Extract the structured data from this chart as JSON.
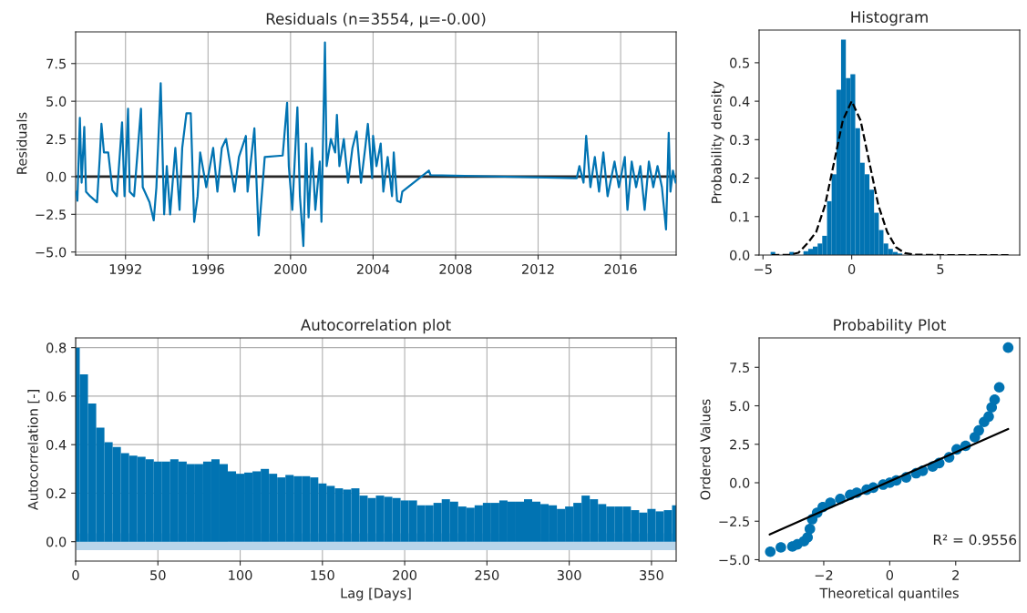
{
  "chart_data": [
    {
      "type": "line",
      "title": "Residuals (n=3554, μ=-0.00)",
      "ylabel": "Residuals",
      "grid": true,
      "x": [
        "1989-08-15",
        "1989-09-01",
        "1989-10-15",
        "1989-11-15",
        "1990-01-01",
        "1990-02-01",
        "1990-04-15",
        "1990-08-15",
        "1990-10-01",
        "1990-11-01",
        "1990-12-15",
        "1991-03-01",
        "1991-05-15",
        "1991-08-01",
        "1991-11-01",
        "1991-12-15",
        "1992-02-15",
        "1992-03-15",
        "1992-06-01",
        "1992-10-01",
        "1992-11-01",
        "1993-03-01",
        "1993-05-15",
        "1993-07-01",
        "1993-09-15",
        "1993-11-15",
        "1994-01-01",
        "1994-03-01",
        "1994-06-01",
        "1994-08-15",
        "1994-10-01",
        "1994-12-15",
        "1995-03-01",
        "1995-05-01",
        "1995-07-01",
        "1995-08-15",
        "1995-12-01",
        "1996-04-01",
        "1996-06-15",
        "1996-09-01",
        "1996-11-15",
        "1997-02-01",
        "1997-04-15",
        "1997-07-01",
        "1997-11-01",
        "1997-12-01",
        "1998-04-01",
        "1998-06-15",
        "1998-10-01",
        "1999-08-15",
        "1999-11-01",
        "1999-12-01",
        "2000-02-01",
        "2000-05-01",
        "2000-06-15",
        "2000-08-15",
        "2000-10-01",
        "2000-11-15",
        "2001-01-15",
        "2001-03-15",
        "2001-06-01",
        "2001-07-01",
        "2001-09-01",
        "2001-10-01",
        "2001-12-15",
        "2002-03-01",
        "2002-04-01",
        "2002-05-15",
        "2002-08-01",
        "2002-10-15",
        "2003-01-01",
        "2003-03-15",
        "2003-06-01",
        "2003-08-15",
        "2003-10-01",
        "2003-12-15",
        "2004-01-01",
        "2004-03-01",
        "2004-05-15",
        "2004-07-01",
        "2004-09-15",
        "2004-12-01",
        "2005-01-01",
        "2005-03-01",
        "2005-05-01",
        "2005-06-01",
        "2006-09-15",
        "2006-10-15",
        "2013-11-15",
        "2014-01-01",
        "2014-03-15",
        "2014-05-01",
        "2014-07-15",
        "2014-10-01",
        "2014-12-15",
        "2015-03-01",
        "2015-05-15",
        "2015-09-15",
        "2015-12-01",
        "2016-03-15",
        "2016-05-01",
        "2016-07-15",
        "2016-10-01",
        "2016-12-15",
        "2017-03-01",
        "2017-05-15",
        "2017-08-01",
        "2017-10-15",
        "2018-01-01",
        "2018-03-15",
        "2018-05-01",
        "2018-06-01",
        "2018-07-15",
        "2018-09-01"
      ],
      "series": [
        {
          "color": "#0173b2",
          "values": [
            -1.0,
            -1.6,
            3.9,
            -0.4,
            3.3,
            -1.0,
            -1.3,
            -1.7,
            1.2,
            3.5,
            1.6,
            1.6,
            -0.9,
            -1.3,
            3.6,
            -1.3,
            4.5,
            -1.0,
            -1.3,
            4.5,
            -0.7,
            -1.7,
            -2.9,
            -0.7,
            6.2,
            -2.5,
            0.7,
            -2.5,
            1.9,
            -2.2,
            1.9,
            4.2,
            4.2,
            -3.0,
            -1.3,
            1.6,
            -0.7,
            1.9,
            -1.0,
            1.9,
            2.5,
            0.7,
            -1.0,
            1.3,
            2.7,
            -1.0,
            3.2,
            -3.9,
            1.3,
            1.4,
            4.9,
            0.7,
            -2.2,
            4.6,
            -1.3,
            -4.6,
            2.2,
            -2.7,
            1.9,
            -2.2,
            1.0,
            -3.0,
            8.9,
            0.7,
            2.5,
            1.6,
            4.1,
            0.7,
            2.5,
            -0.4,
            1.9,
            3.0,
            -0.4,
            1.9,
            3.5,
            -0.1,
            2.7,
            0.7,
            2.2,
            -1.0,
            1.3,
            -1.3,
            1.6,
            -1.6,
            -1.7,
            -1.0,
            0.4,
            0.1,
            -0.1,
            0.7,
            -0.4,
            2.7,
            -0.7,
            1.3,
            -1.0,
            1.6,
            -1.3,
            1.0,
            -0.7,
            1.3,
            -2.2,
            1.0,
            -0.7,
            0.7,
            -2.2,
            1.0,
            -0.7,
            0.7,
            -0.7,
            -3.5,
            2.9,
            -1.0,
            0.4,
            -0.4
          ]
        }
      ],
      "ref_lines": [
        {
          "axis": "y",
          "value": 0,
          "color": "#262626"
        }
      ],
      "xlim": [
        "1989-08-01",
        "2018-09-10"
      ],
      "ylim": [
        -5.2,
        9.6
      ],
      "xticks": [
        "1992",
        "1996",
        "2000",
        "2004",
        "2008",
        "2012",
        "2016"
      ],
      "yticks": [
        {
          "value": -5,
          "label": "−5.0"
        },
        {
          "value": -2.5,
          "label": "−2.5"
        },
        {
          "value": 0,
          "label": "0.0"
        },
        2.5,
        {
          "value": 5,
          "label": "5.0"
        },
        7.5
      ]
    },
    {
      "type": "histogram",
      "title": "Histogram",
      "ylabel": "Probability density",
      "bins": [
        -4.57,
        -4.31,
        -4.04,
        -3.78,
        -3.51,
        -3.25,
        -2.98,
        -2.72,
        -2.45,
        -2.19,
        -1.92,
        -1.66,
        -1.39,
        -1.13,
        -0.86,
        -0.6,
        -0.33,
        -0.07,
        0.2,
        0.47,
        0.73,
        1.0,
        1.26,
        1.53,
        1.79,
        2.06,
        2.32,
        2.59,
        2.85,
        3.12,
        3.38
      ],
      "series": [
        {
          "color": "#0173b2",
          "values": [
            0.008,
            0,
            0,
            0,
            0.008,
            0,
            0,
            0.01,
            0.016,
            0.022,
            0.03,
            0.05,
            0.14,
            0.21,
            0.43,
            0.56,
            0.46,
            0.47,
            0.33,
            0.24,
            0.21,
            0.17,
            0.11,
            0.065,
            0.03,
            0.016,
            0.008,
            0.004,
            0,
            0
          ]
        },
        {
          "type": "line",
          "color": "#000000",
          "line_style": "dashed",
          "x": [
            -4.5,
            -3.5,
            -3.0,
            -2.5,
            -2.0,
            -1.5,
            -1.0,
            -0.5,
            0.0,
            0.5,
            1.0,
            1.5,
            2.0,
            2.5,
            3.0,
            3.5,
            5.0,
            8.9
          ],
          "values": [
            0,
            0.001,
            0.006,
            0.03,
            0.06,
            0.13,
            0.24,
            0.35,
            0.4,
            0.35,
            0.24,
            0.13,
            0.06,
            0.02,
            0.005,
            0.001,
            0,
            0
          ]
        }
      ],
      "xlim": [
        -5.22,
        9.47
      ],
      "ylim": [
        0,
        0.585
      ],
      "xticks": [
        {
          "value": -5,
          "label": "−5"
        },
        0,
        5
      ],
      "yticks": [
        {
          "value": 0,
          "label": "0.0"
        },
        0.1,
        0.2,
        0.3,
        0.4,
        0.5
      ]
    },
    {
      "type": "bar",
      "title": "Autocorrelation plot",
      "xlabel": "Lag [Days]",
      "ylabel": "Autocorrelation [-]",
      "grid": true,
      "x": [
        0,
        5,
        10,
        15,
        20,
        25,
        30,
        35,
        40,
        45,
        50,
        55,
        60,
        65,
        70,
        75,
        80,
        85,
        90,
        95,
        100,
        105,
        110,
        115,
        120,
        125,
        130,
        135,
        140,
        145,
        150,
        155,
        160,
        165,
        170,
        175,
        180,
        185,
        190,
        195,
        200,
        205,
        210,
        215,
        220,
        225,
        230,
        235,
        240,
        245,
        250,
        255,
        260,
        265,
        270,
        275,
        280,
        285,
        290,
        295,
        300,
        305,
        310,
        315,
        320,
        325,
        330,
        335,
        340,
        345,
        350,
        355,
        360,
        365
      ],
      "series": [
        {
          "color": "#0173b2",
          "values": [
            0.8,
            0.69,
            0.57,
            0.47,
            0.41,
            0.39,
            0.365,
            0.355,
            0.35,
            0.34,
            0.33,
            0.33,
            0.34,
            0.33,
            0.32,
            0.32,
            0.33,
            0.34,
            0.32,
            0.29,
            0.28,
            0.285,
            0.29,
            0.3,
            0.28,
            0.265,
            0.275,
            0.27,
            0.27,
            0.265,
            0.24,
            0.23,
            0.22,
            0.215,
            0.22,
            0.19,
            0.18,
            0.19,
            0.185,
            0.18,
            0.17,
            0.17,
            0.15,
            0.15,
            0.16,
            0.175,
            0.165,
            0.145,
            0.14,
            0.15,
            0.16,
            0.16,
            0.17,
            0.165,
            0.165,
            0.175,
            0.165,
            0.155,
            0.15,
            0.135,
            0.145,
            0.16,
            0.19,
            0.175,
            0.155,
            0.145,
            0.145,
            0.145,
            0.13,
            0.12,
            0.135,
            0.125,
            0.13,
            0.15
          ]
        }
      ],
      "bands": [
        {
          "axis": "y",
          "from": -0.035,
          "to": 0.035,
          "color": "#b8d5ea"
        }
      ],
      "xlim": [
        0,
        365
      ],
      "ylim": [
        -0.08,
        0.84
      ],
      "xticks": [
        0,
        50,
        100,
        150,
        200,
        250,
        300,
        350
      ],
      "yticks": [
        {
          "value": 0,
          "label": "0.0"
        },
        0.2,
        0.4,
        0.6,
        0.8
      ]
    },
    {
      "type": "scatter",
      "title": "Probability Plot",
      "xlabel": "Theoretical quantiles",
      "ylabel": "Ordered Values",
      "annotations": [
        "R² = 0.9556"
      ],
      "series": [
        {
          "color": "#0173b2",
          "marker": "circle",
          "x": [
            -3.62,
            -3.3,
            -2.95,
            -2.8,
            -2.6,
            -2.49,
            -2.42,
            -2.35,
            -2.2,
            -2.03,
            -1.8,
            -1.5,
            -1.2,
            -1.0,
            -0.7,
            -0.5,
            -0.2,
            0.0,
            0.2,
            0.5,
            0.8,
            1.0,
            1.3,
            1.5,
            1.8,
            2.03,
            2.3,
            2.58,
            2.7,
            2.86,
            3.0,
            3.09,
            3.18,
            3.32,
            3.59
          ],
          "values": [
            -4.48,
            -4.2,
            -4.14,
            -4.0,
            -3.8,
            -3.55,
            -3.0,
            -2.37,
            -1.95,
            -1.58,
            -1.3,
            -1.05,
            -0.79,
            -0.65,
            -0.45,
            -0.32,
            -0.12,
            0.0,
            0.15,
            0.35,
            0.62,
            0.78,
            1.05,
            1.28,
            1.65,
            2.17,
            2.4,
            2.96,
            3.4,
            3.95,
            4.3,
            4.9,
            5.4,
            6.2,
            8.78
          ]
        },
        {
          "type": "line",
          "color": "#000000",
          "x": [
            -3.64,
            3.59
          ],
          "values": [
            -3.36,
            3.49
          ]
        }
      ],
      "xlim": [
        -3.96,
        3.94
      ],
      "ylim": [
        -5.09,
        9.41
      ],
      "xticks": [
        {
          "value": -2,
          "label": "−2"
        },
        0,
        2
      ],
      "yticks": [
        {
          "value": -5,
          "label": "−5.0"
        },
        {
          "value": -2.5,
          "label": "−2.5"
        },
        {
          "value": 0,
          "label": "0.0"
        },
        2.5,
        {
          "value": 5,
          "label": "5.0"
        },
        7.5
      ]
    }
  ]
}
